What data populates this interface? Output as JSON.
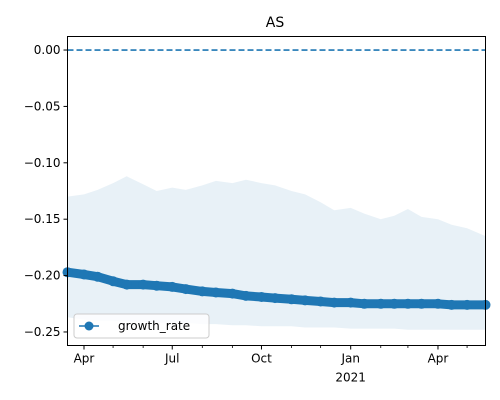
{
  "chart_data": {
    "type": "line",
    "title": "AS",
    "xlabel": "",
    "ylabel": "",
    "x_range": [
      "2020-03-15",
      "2021-05-20"
    ],
    "ylim": [
      -0.262,
      0.012
    ],
    "x_ticks": [
      {
        "date": "2020-04-01",
        "label": "Apr",
        "sub": ""
      },
      {
        "date": "2020-07-01",
        "label": "Jul",
        "sub": ""
      },
      {
        "date": "2020-10-01",
        "label": "Oct",
        "sub": ""
      },
      {
        "date": "2021-01-01",
        "label": "Jan",
        "sub": "2021"
      },
      {
        "date": "2021-04-01",
        "label": "Apr",
        "sub": ""
      }
    ],
    "x_minor_ticks": [
      "2020-05-01",
      "2020-06-01",
      "2020-08-01",
      "2020-09-01",
      "2020-11-01",
      "2020-12-01",
      "2021-02-01",
      "2021-03-01",
      "2021-05-01"
    ],
    "y_ticks": [
      0.0,
      -0.05,
      -0.1,
      -0.15,
      -0.2,
      -0.25
    ],
    "y_tick_labels": [
      "0.00",
      "−0.05",
      "−0.10",
      "−0.15",
      "−0.20",
      "−0.25"
    ],
    "reference_line": {
      "y": 0.0,
      "style": "dashed",
      "color": "#1f77b4"
    },
    "series": [
      {
        "name": "growth_rate",
        "color": "#1f77b4",
        "marker": "o",
        "x": [
          "2020-03-15",
          "2020-04-01",
          "2020-04-15",
          "2020-05-01",
          "2020-05-15",
          "2020-06-01",
          "2020-06-15",
          "2020-07-01",
          "2020-07-15",
          "2020-08-01",
          "2020-08-15",
          "2020-09-01",
          "2020-09-15",
          "2020-10-01",
          "2020-10-15",
          "2020-11-01",
          "2020-11-15",
          "2020-12-01",
          "2020-12-15",
          "2021-01-01",
          "2021-01-15",
          "2021-02-01",
          "2021-02-15",
          "2021-03-01",
          "2021-03-15",
          "2021-04-01",
          "2021-04-15",
          "2021-05-01",
          "2021-05-20"
        ],
        "y": [
          -0.197,
          -0.199,
          -0.201,
          -0.205,
          -0.208,
          -0.208,
          -0.209,
          -0.21,
          -0.212,
          -0.214,
          -0.215,
          -0.216,
          -0.218,
          -0.219,
          -0.22,
          -0.221,
          -0.222,
          -0.223,
          -0.224,
          -0.224,
          -0.225,
          -0.225,
          -0.225,
          -0.225,
          -0.225,
          -0.225,
          -0.226,
          -0.226,
          -0.226
        ]
      }
    ],
    "band": {
      "color": "#1f77b4",
      "opacity": 0.1,
      "x": [
        "2020-03-15",
        "2020-04-01",
        "2020-04-15",
        "2020-05-01",
        "2020-05-15",
        "2020-06-01",
        "2020-06-15",
        "2020-07-01",
        "2020-07-15",
        "2020-08-01",
        "2020-08-15",
        "2020-09-01",
        "2020-09-15",
        "2020-10-01",
        "2020-10-15",
        "2020-11-01",
        "2020-11-15",
        "2020-12-01",
        "2020-12-15",
        "2021-01-01",
        "2021-01-15",
        "2021-02-01",
        "2021-02-15",
        "2021-03-01",
        "2021-03-15",
        "2021-04-01",
        "2021-04-15",
        "2021-05-01",
        "2021-05-20"
      ],
      "upper": [
        -0.13,
        -0.128,
        -0.124,
        -0.118,
        -0.112,
        -0.119,
        -0.125,
        -0.122,
        -0.124,
        -0.12,
        -0.116,
        -0.118,
        -0.115,
        -0.118,
        -0.12,
        -0.125,
        -0.128,
        -0.135,
        -0.142,
        -0.14,
        -0.145,
        -0.15,
        -0.147,
        -0.141,
        -0.148,
        -0.15,
        -0.155,
        -0.158,
        -0.165
      ],
      "lower": [
        -0.237,
        -0.239,
        -0.24,
        -0.24,
        -0.241,
        -0.241,
        -0.242,
        -0.242,
        -0.242,
        -0.243,
        -0.243,
        -0.244,
        -0.244,
        -0.245,
        -0.245,
        -0.245,
        -0.246,
        -0.246,
        -0.246,
        -0.247,
        -0.247,
        -0.247,
        -0.247,
        -0.248,
        -0.248,
        -0.248,
        -0.248,
        -0.248,
        -0.248
      ]
    },
    "legend": {
      "position": "lower-left",
      "entries": [
        "growth_rate"
      ]
    },
    "grid": false
  }
}
